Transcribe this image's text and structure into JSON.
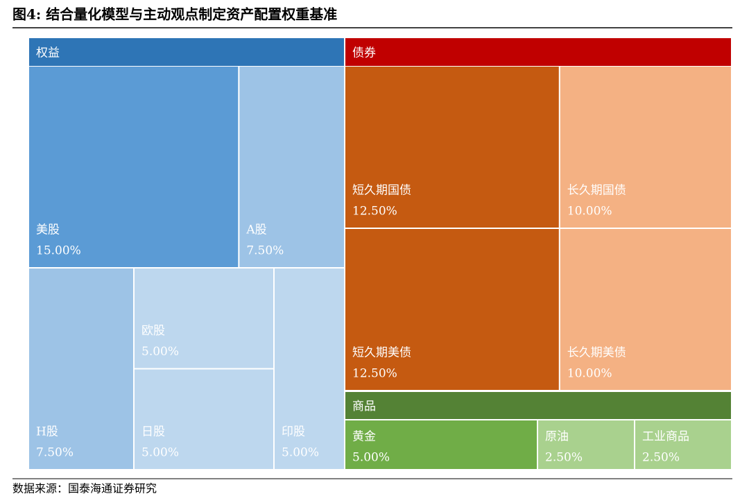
{
  "chart_data": {
    "type": "treemap",
    "title": "图4:  结合量化模型与主动观点制定资产配置权重基准",
    "source": "数据来源：国泰海通证券研究",
    "groups": [
      {
        "name": "权益",
        "color": "#2e75b6",
        "children": [
          {
            "name": "美股",
            "value": 15,
            "value_label": "15.00%",
            "color": "#5b9bd5"
          },
          {
            "name": "A股",
            "value": 7.5,
            "value_label": "7.50%",
            "color": "#9dc3e6"
          },
          {
            "name": "H股",
            "value": 7.5,
            "value_label": "7.50%",
            "color": "#9dc3e6"
          },
          {
            "name": "欧股",
            "value": 5,
            "value_label": "5.00%",
            "color": "#bdd7ee"
          },
          {
            "name": "日股",
            "value": 5,
            "value_label": "5.00%",
            "color": "#bdd7ee"
          },
          {
            "name": "印股",
            "value": 5,
            "value_label": "5.00%",
            "color": "#bdd7ee"
          }
        ]
      },
      {
        "name": "债券",
        "color": "#c00000",
        "children": [
          {
            "name": "短久期国债",
            "value": 12.5,
            "value_label": "12.50%",
            "color": "#c55a11"
          },
          {
            "name": "长久期国债",
            "value": 10,
            "value_label": "10.00%",
            "color": "#f4b183"
          },
          {
            "name": "短久期美债",
            "value": 12.5,
            "value_label": "12.50%",
            "color": "#c55a11"
          },
          {
            "name": "长久期美债",
            "value": 10,
            "value_label": "10.00%",
            "color": "#f4b183"
          }
        ]
      },
      {
        "name": "商品",
        "color": "#548235",
        "children": [
          {
            "name": "黄金",
            "value": 5,
            "value_label": "5.00%",
            "color": "#70ad47"
          },
          {
            "name": "原油",
            "value": 2.5,
            "value_label": "2.50%",
            "color": "#a9d18e"
          },
          {
            "name": "工业商品",
            "value": 2.5,
            "value_label": "2.50%",
            "color": "#a9d18e"
          }
        ]
      }
    ]
  }
}
